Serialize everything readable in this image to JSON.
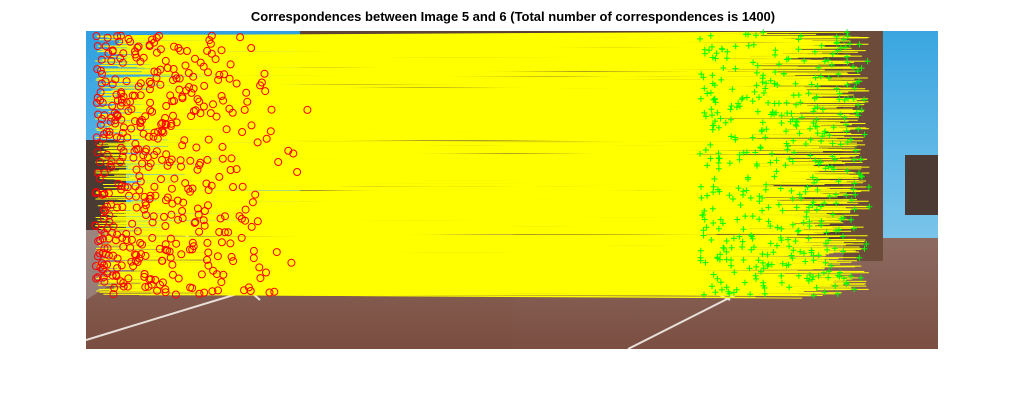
{
  "figure": {
    "title": "Correspondences between Image 5 and 6 (Total number of correspondences is 1400)"
  },
  "images": {
    "left": {
      "name": "Image 5"
    },
    "right": {
      "name": "Image 6"
    }
  },
  "correspondences": {
    "total": 1400,
    "line_color": "#ffff00",
    "left_marker": "circle",
    "left_marker_color": "#ff0000",
    "right_marker": "plus",
    "right_marker_color": "#00ff00"
  },
  "colors": {
    "sky": "#3aa7dd",
    "building": "#6b4a3a",
    "pavement": "#8a5a4a"
  }
}
